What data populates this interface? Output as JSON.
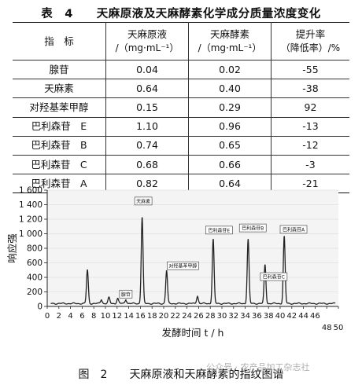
{
  "table": {
    "caption": "表　4　　天麻原液及天麻酵素化学成分质量浓度变化",
    "headers": [
      {
        "line1": "指　标",
        "line2": ""
      },
      {
        "line1": "天麻原液",
        "line2": "/（mg·mL⁻¹）"
      },
      {
        "line1": "天麻酵素",
        "line2": "/（mg·mL⁻¹）"
      },
      {
        "line1": "提升率",
        "line2": "（降低率）/%"
      }
    ],
    "rows": [
      [
        "腺苷",
        "0.04",
        "0.02",
        "-55"
      ],
      [
        "天麻素",
        "0.64",
        "0.40",
        "-38"
      ],
      [
        "对羟基苯甲醇",
        "0.15",
        "0.29",
        "92"
      ],
      [
        "巴利森苷　E",
        "1.10",
        "0.96",
        "-13"
      ],
      [
        "巴利森苷　B",
        "0.74",
        "0.65",
        "-12"
      ],
      [
        "巴利森苷　C",
        "0.68",
        "0.66",
        "-3"
      ],
      [
        "巴利森苷　A",
        "0.82",
        "0.64",
        "-21"
      ]
    ]
  },
  "chart_data": {
    "type": "line",
    "title": "",
    "xlabel": "发酵时间 t / h",
    "ylabel": "响应强",
    "xlim": [
      0,
      50
    ],
    "ylim": [
      0,
      1600
    ],
    "x_ticks": [
      "0",
      "2",
      "4",
      "6",
      "8",
      "10",
      "12",
      "14",
      "16",
      "18",
      "20",
      "22",
      "24",
      "26",
      "28",
      "30",
      "32",
      "34",
      "36",
      "38",
      "40",
      "42",
      "44",
      "46",
      "48",
      "50"
    ],
    "y_ticks": [
      "0",
      "200",
      "400",
      "600",
      "800",
      "1 000",
      "1 200",
      "1 400",
      "1 600"
    ],
    "baseline": 40,
    "peaks": [
      {
        "x": 6.9,
        "y": 500
      },
      {
        "x": 9.3,
        "y": 90
      },
      {
        "x": 10.6,
        "y": 120
      },
      {
        "x": 12.1,
        "y": 110
      },
      {
        "x": 13.5,
        "y": 90
      },
      {
        "x": 16.3,
        "y": 1220
      },
      {
        "x": 20.5,
        "y": 490
      },
      {
        "x": 25.8,
        "y": 140
      },
      {
        "x": 28.5,
        "y": 920
      },
      {
        "x": 34.5,
        "y": 920
      },
      {
        "x": 37.4,
        "y": 570
      },
      {
        "x": 40.7,
        "y": 960
      }
    ],
    "annotations": [
      {
        "text": "腺苷",
        "x": 13.5,
        "y": 170
      },
      {
        "text": "天麻素",
        "x": 16.5,
        "y": 1450
      },
      {
        "text": "对羟基苯甲醇",
        "x": 23.3,
        "y": 560
      },
      {
        "text": "巴利森苷E",
        "x": 29.5,
        "y": 1050
      },
      {
        "text": "巴利森苷B",
        "x": 35.3,
        "y": 1080
      },
      {
        "text": "巴利森苷C",
        "x": 38.9,
        "y": 410
      },
      {
        "text": "巴利森苷A",
        "x": 42.3,
        "y": 1060
      }
    ]
  },
  "figure": {
    "caption": "图　2　　天麻原液和天麻酵素的指纹图谱",
    "watermark": "公众号 · 农产品加工杂志社"
  },
  "colors": {
    "line": "#222222",
    "label_fill": "#ffffff"
  }
}
